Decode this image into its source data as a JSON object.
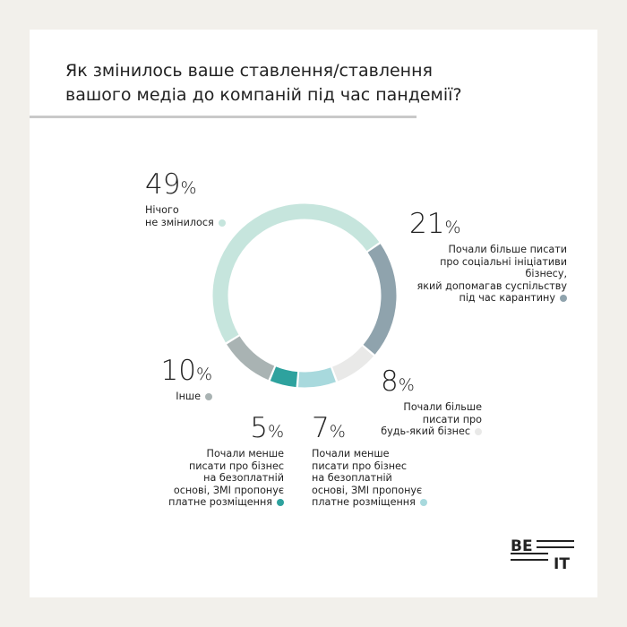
{
  "chart_data": {
    "type": "donut",
    "title": "Як змінилось ваше ставлення/ставлення\nвашого медіа до компаній під час пандемії?",
    "unit": "%",
    "series": [
      {
        "name": "Почали більше писати\nпро соціальні ініціативи бізнесу,\nякий допомагав суспільству\nпід час карантину",
        "color": "#8fa3ad",
        "values": [
          21
        ]
      },
      {
        "name": "Почали більше\nписати про\nбудь-який бізнес",
        "color": "#e9e9e8",
        "values": [
          8
        ]
      },
      {
        "name": "Почали менше\nписати про бізнес\nна безоплатній\nоснові, ЗМІ пропонує\nплатне розміщення",
        "color": "#a8d9dd",
        "values": [
          7
        ]
      },
      {
        "name": "Почали менше\nписати про бізнес\nна безоплатній\nоснові, ЗМІ пропонує\nплатне розміщення",
        "color": "#2ea29e",
        "values": [
          5
        ]
      },
      {
        "name": "Інше",
        "color": "#a9b3b3",
        "values": [
          10
        ]
      },
      {
        "name": "Нічого\nне змінилося",
        "color": "#c6e5dd",
        "values": [
          49
        ]
      }
    ],
    "logo": [
      "BE",
      "IT"
    ]
  }
}
